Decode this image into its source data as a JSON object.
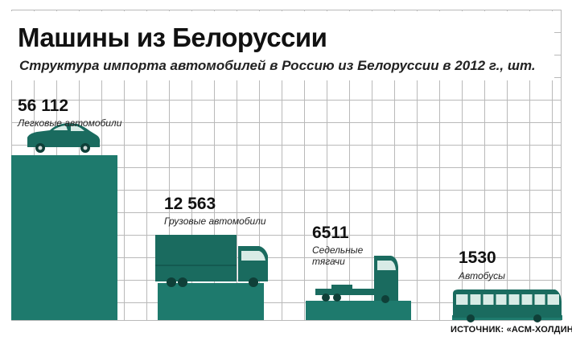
{
  "header": {
    "title": "Машины из Белоруссии",
    "subtitle": "Структура импорта автомобилей в Россию из Белоруссии в 2012 г., шт."
  },
  "colors": {
    "bar": "#1e7a6d",
    "vehicle": "#1a6b5f",
    "grid": "#b9b9b9"
  },
  "chart_data": {
    "type": "bar",
    "title": "Машины из Белоруссии",
    "subtitle": "Структура импорта автомобилей в Россию из Белоруссии в 2012 г., шт.",
    "categories": [
      "Легковые автомобили",
      "Грузовые автомобили",
      "Седельные тягачи",
      "Автобусы"
    ],
    "values": [
      56112,
      12563,
      6511,
      1530
    ],
    "value_labels": [
      "56 112",
      "12 563",
      "6511",
      "1530"
    ],
    "icons": [
      "car-icon",
      "truck-icon",
      "tractor-unit-icon",
      "bus-icon"
    ],
    "xlabel": "",
    "ylabel": "",
    "grid": true,
    "legend": "none"
  },
  "source": "ИСТОЧНИК: «АСМ-ХОЛДИНГ»"
}
